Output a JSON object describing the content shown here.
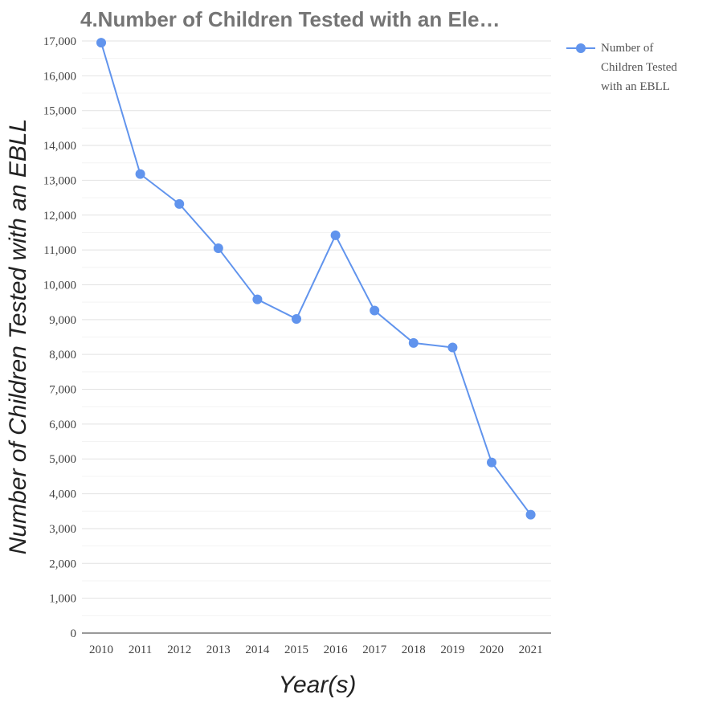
{
  "chart_data": {
    "type": "line",
    "title": "4.Number of Children Tested with an Ele…",
    "xlabel": "Year(s)",
    "ylabel": "Number of Children Tested with an EBLL",
    "categories": [
      "2010",
      "2011",
      "2012",
      "2013",
      "2014",
      "2015",
      "2016",
      "2017",
      "2018",
      "2019",
      "2020",
      "2021"
    ],
    "series": [
      {
        "name": "Number of Children Tested with an EBLL",
        "legend_lines": [
          "Number of",
          "Children Tested",
          "with an EBLL"
        ],
        "color": "#6194ed",
        "values": [
          16950,
          13180,
          12320,
          11050,
          9580,
          9020,
          11420,
          9260,
          8330,
          8200,
          4900,
          3400
        ]
      }
    ],
    "ylim": [
      0,
      17000
    ],
    "yticks": [
      0,
      1000,
      2000,
      3000,
      4000,
      5000,
      6000,
      7000,
      8000,
      9000,
      10000,
      11000,
      12000,
      13000,
      14000,
      15000,
      16000,
      17000
    ],
    "ytick_labels": [
      "0",
      "1,000",
      "2,000",
      "3,000",
      "4,000",
      "5,000",
      "6,000",
      "7,000",
      "8,000",
      "9,000",
      "10,000",
      "11,000",
      "12,000",
      "13,000",
      "14,000",
      "15,000",
      "16,000",
      "17,000"
    ],
    "grid": true,
    "legend_position": "right"
  }
}
